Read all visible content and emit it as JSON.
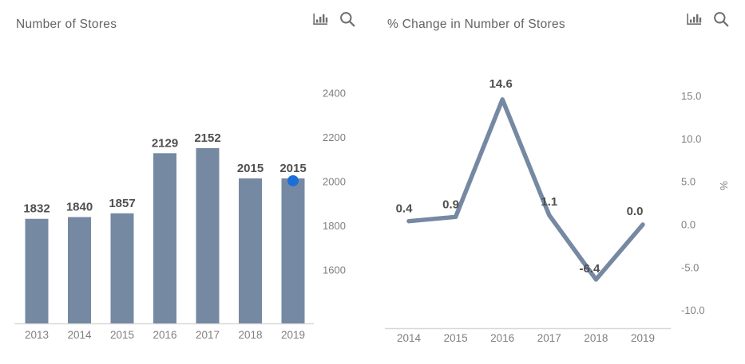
{
  "colors": {
    "background": "#FFFFFF",
    "series": "#7689A3",
    "marker": "#1C6FD8",
    "data_label": "#4F4F4F",
    "axis_label": "#7F7F7F",
    "axis_line": "#D8D8D8",
    "title": "#636363",
    "icon": "#6E6E6E"
  },
  "chart_data": [
    {
      "type": "bar",
      "title": "Number of Stores",
      "categories": [
        "2013",
        "2014",
        "2015",
        "2016",
        "2017",
        "2018",
        "2019"
      ],
      "values": [
        1832,
        1840,
        1857,
        2129,
        2152,
        2015,
        2015
      ],
      "data_labels": [
        "1832",
        "1840",
        "1857",
        "2129",
        "2152",
        "2015",
        "2015"
      ],
      "yticks": [
        2400,
        2200,
        2000,
        1800,
        1600
      ],
      "ytick_labels": [
        "2400",
        "2200",
        "2000",
        "1800",
        "1600"
      ],
      "ylim": [
        1359,
        2500
      ],
      "yaxis_side": "right",
      "grid": false,
      "legend": false,
      "highlight": {
        "index": 6,
        "marker": "blue-dot"
      }
    },
    {
      "type": "line",
      "title": "% Change in Number of Stores",
      "categories": [
        "2014",
        "2015",
        "2016",
        "2017",
        "2018",
        "2019"
      ],
      "values": [
        0.4,
        0.9,
        14.6,
        1.1,
        -6.4,
        0.0
      ],
      "data_labels": [
        "0.4",
        "0.9",
        "14.6",
        "1.1",
        "-6.4",
        "0.0"
      ],
      "yticks": [
        15,
        10,
        5,
        0,
        -5,
        -10
      ],
      "ytick_labels": [
        "15.0",
        "10.0",
        "5.0",
        "0.0",
        "-5.0",
        "-10.0"
      ],
      "ylabel": "%",
      "ylim": [
        -12,
        17
      ],
      "yaxis_side": "right",
      "grid": false,
      "legend": false
    }
  ]
}
